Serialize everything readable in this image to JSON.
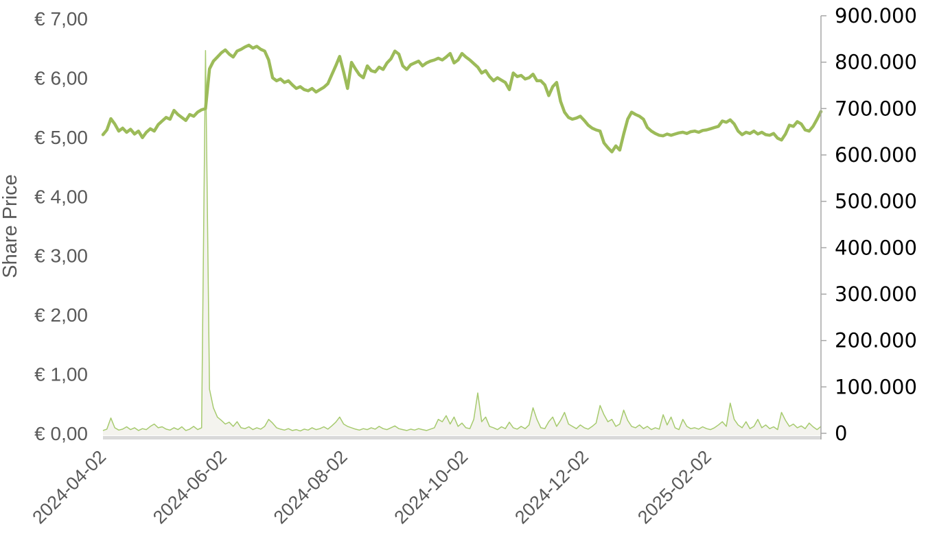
{
  "page": {
    "background_color": "#ffffff"
  },
  "chart_data": {
    "type": "line",
    "title": "",
    "left_axis": {
      "label": "Share Price",
      "unit": "EUR",
      "min": 0,
      "max": 7,
      "ticks": [
        {
          "value": 7,
          "label": "€ 7,00"
        },
        {
          "value": 6,
          "label": "€ 6,00"
        },
        {
          "value": 5,
          "label": "€ 5,00"
        },
        {
          "value": 4,
          "label": "€ 4,00"
        },
        {
          "value": 3,
          "label": "€ 3,00"
        },
        {
          "value": 2,
          "label": "€ 2,00"
        },
        {
          "value": 1,
          "label": "€ 1,00"
        },
        {
          "value": 0,
          "label": "€ 0,00"
        }
      ]
    },
    "right_axis": {
      "label": "",
      "min": 0,
      "max": 900000,
      "ticks": [
        {
          "value": 900000,
          "label": "900.000"
        },
        {
          "value": 800000,
          "label": "800.000"
        },
        {
          "value": 700000,
          "label": "700.000"
        },
        {
          "value": 600000,
          "label": "600.000"
        },
        {
          "value": 500000,
          "label": "500.000"
        },
        {
          "value": 400000,
          "label": "400.000"
        },
        {
          "value": 300000,
          "label": "300.000"
        },
        {
          "value": 200000,
          "label": "200.000"
        },
        {
          "value": 100000,
          "label": "100.000"
        },
        {
          "value": 0,
          "label": "0"
        }
      ]
    },
    "x_axis": {
      "start_date": "2024-04-02",
      "end_date": "2025-03-31",
      "ticks": [
        {
          "date": "2024-04-02",
          "t": 0.0
        },
        {
          "date": "2024-06-02",
          "t": 0.168
        },
        {
          "date": "2024-08-02",
          "t": 0.336
        },
        {
          "date": "2024-10-02",
          "t": 0.504
        },
        {
          "date": "2024-12-02",
          "t": 0.672
        },
        {
          "date": "2025-02-02",
          "t": 0.843
        }
      ],
      "grid": false,
      "legend": "none"
    },
    "series": [
      {
        "name": "share-price",
        "axis": "left",
        "style": "line",
        "color": "#9cbb59",
        "stroke_width": 4.5,
        "values": [
          5.04,
          5.12,
          5.31,
          5.22,
          5.1,
          5.15,
          5.08,
          5.13,
          5.05,
          5.1,
          4.99,
          5.08,
          5.14,
          5.1,
          5.21,
          5.27,
          5.33,
          5.3,
          5.45,
          5.38,
          5.33,
          5.28,
          5.38,
          5.35,
          5.42,
          5.46,
          5.48,
          6.15,
          6.28,
          6.35,
          6.42,
          6.47,
          6.4,
          6.35,
          6.45,
          6.48,
          6.52,
          6.55,
          6.5,
          6.53,
          6.48,
          6.45,
          6.3,
          6.0,
          5.95,
          5.98,
          5.92,
          5.95,
          5.88,
          5.82,
          5.85,
          5.8,
          5.78,
          5.82,
          5.76,
          5.8,
          5.84,
          5.9,
          6.05,
          6.2,
          6.36,
          6.1,
          5.82,
          6.26,
          6.15,
          6.05,
          6.0,
          6.2,
          6.12,
          6.1,
          6.18,
          6.14,
          6.25,
          6.32,
          6.45,
          6.4,
          6.2,
          6.14,
          6.22,
          6.25,
          6.28,
          6.2,
          6.25,
          6.28,
          6.3,
          6.33,
          6.3,
          6.35,
          6.41,
          6.25,
          6.3,
          6.41,
          6.35,
          6.3,
          6.24,
          6.18,
          6.08,
          6.12,
          6.02,
          5.95,
          6.0,
          5.96,
          5.92,
          5.8,
          6.08,
          6.02,
          6.04,
          5.98,
          6.0,
          6.06,
          5.95,
          5.95,
          5.88,
          5.7,
          5.85,
          5.92,
          5.6,
          5.42,
          5.33,
          5.3,
          5.32,
          5.35,
          5.28,
          5.2,
          5.15,
          5.12,
          5.1,
          4.9,
          4.82,
          4.75,
          4.85,
          4.78,
          5.05,
          5.3,
          5.42,
          5.38,
          5.35,
          5.3,
          5.16,
          5.1,
          5.06,
          5.03,
          5.02,
          5.05,
          5.03,
          5.05,
          5.07,
          5.08,
          5.06,
          5.09,
          5.1,
          5.08,
          5.11,
          5.12,
          5.14,
          5.16,
          5.18,
          5.27,
          5.25,
          5.29,
          5.22,
          5.1,
          5.04,
          5.08,
          5.06,
          5.1,
          5.05,
          5.08,
          5.04,
          5.03,
          5.06,
          4.98,
          4.95,
          5.05,
          5.2,
          5.18,
          5.26,
          5.22,
          5.12,
          5.1,
          5.18,
          5.3,
          5.43
        ]
      },
      {
        "name": "volume",
        "axis": "right",
        "style": "area",
        "color": "#a6ca6e",
        "fill": "#f4f3ee",
        "stroke_width": 1.5,
        "values": [
          6000,
          9000,
          33000,
          12000,
          7000,
          9000,
          14000,
          8000,
          12000,
          6000,
          10000,
          8000,
          15000,
          20000,
          12000,
          14000,
          9000,
          7000,
          12000,
          8000,
          14000,
          6000,
          9000,
          15000,
          8000,
          12000,
          825000,
          95000,
          55000,
          35000,
          28000,
          20000,
          24000,
          15000,
          25000,
          12000,
          10000,
          14000,
          8000,
          12000,
          9000,
          15000,
          30000,
          22000,
          12000,
          9000,
          7000,
          10000,
          6000,
          8000,
          5000,
          9000,
          7000,
          12000,
          8000,
          10000,
          14000,
          9000,
          16000,
          24000,
          35000,
          20000,
          15000,
          12000,
          9000,
          7000,
          10000,
          8000,
          12000,
          9000,
          15000,
          10000,
          8000,
          12000,
          16000,
          10000,
          8000,
          6000,
          9000,
          7000,
          10000,
          8000,
          6000,
          9000,
          12000,
          30000,
          25000,
          38000,
          20000,
          35000,
          15000,
          22000,
          12000,
          10000,
          30000,
          87000,
          25000,
          35000,
          15000,
          12000,
          8000,
          14000,
          10000,
          24000,
          12000,
          9000,
          15000,
          10000,
          18000,
          55000,
          30000,
          12000,
          10000,
          25000,
          35000,
          15000,
          28000,
          45000,
          20000,
          15000,
          10000,
          18000,
          12000,
          9000,
          15000,
          22000,
          60000,
          40000,
          25000,
          30000,
          15000,
          20000,
          50000,
          28000,
          15000,
          12000,
          18000,
          10000,
          15000,
          8000,
          12000,
          9000,
          40000,
          18000,
          35000,
          12000,
          8000,
          30000,
          15000,
          10000,
          12000,
          9000,
          14000,
          10000,
          8000,
          12000,
          18000,
          25000,
          15000,
          65000,
          30000,
          18000,
          12000,
          25000,
          10000,
          15000,
          30000,
          12000,
          18000,
          10000,
          14000,
          8000,
          45000,
          28000,
          15000,
          20000,
          12000,
          16000,
          10000,
          22000,
          14000,
          8000,
          15000
        ]
      }
    ],
    "decorations": {
      "baseline_band_color": "#d9d9d9",
      "right_axis_line_color": "#a6a6a6",
      "left_tick_color": "#595959",
      "right_tick_color": "#000000",
      "x_tick_color": "#595959"
    }
  }
}
